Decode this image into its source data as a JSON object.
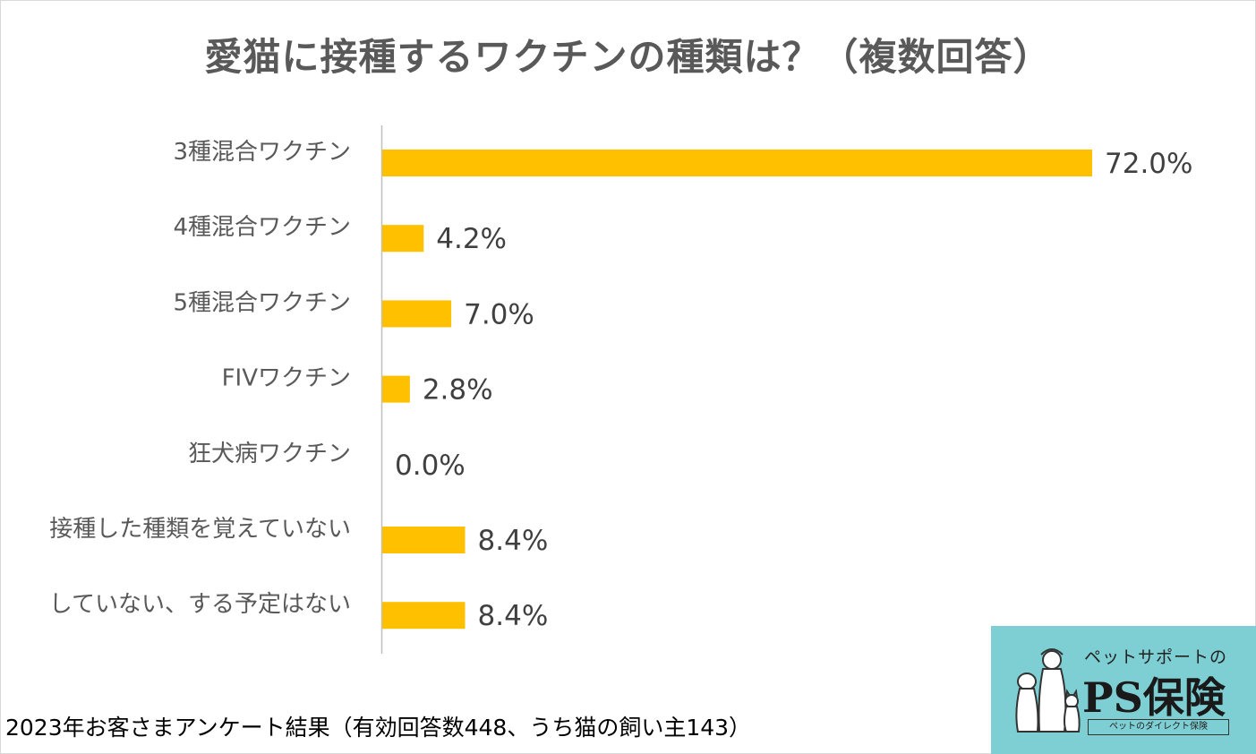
{
  "chart_data": {
    "type": "bar",
    "orientation": "horizontal",
    "title": "愛猫に接種するワクチンの種類は？（複数回答）",
    "categories": [
      "3種混合ワクチン",
      "4種混合ワクチン",
      "5種混合ワクチン",
      "FIVワクチン",
      "狂犬病ワクチン",
      "接種した種類を覚えていない",
      "していない、する予定はない"
    ],
    "values": [
      72.0,
      4.2,
      7.0,
      2.8,
      0.0,
      8.4,
      8.4
    ],
    "data_labels": [
      "72.0%",
      "4.2%",
      "7.0%",
      "2.8%",
      "0.0%",
      "8.4%",
      "8.4%"
    ],
    "xlim": [
      0,
      72.0
    ],
    "grid": false,
    "legend": "none",
    "bar_color": "#ffc000"
  },
  "footnote": "2023年お客さまアンケート結果（有効回答数448、うち猫の飼い主143）",
  "logo": {
    "top_text": "ペットサポートの",
    "main_text": "PS保険",
    "tagline": "ペットのダイレクト保険",
    "background": "#7ecfd3"
  }
}
